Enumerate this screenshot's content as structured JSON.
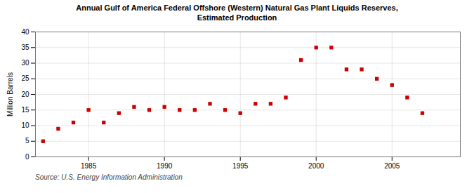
{
  "chart_data": {
    "type": "scatter",
    "title": "Annual Gulf of America Federal Offshore (Western) Natural Gas Plant Liquids Reserves,\nEstimated Production",
    "ylabel": "Million Barrels",
    "source": "Source: U.S. Energy Information Administration",
    "x": [
      1982,
      1983,
      1984,
      1985,
      1986,
      1987,
      1988,
      1989,
      1990,
      1991,
      1992,
      1993,
      1994,
      1995,
      1996,
      1997,
      1998,
      1999,
      2000,
      2001,
      2002,
      2003,
      2004,
      2005,
      2006,
      2007
    ],
    "values": [
      5,
      9,
      11,
      15,
      11,
      14,
      16,
      15,
      16,
      15,
      15,
      17,
      15,
      14,
      17,
      17,
      19,
      31,
      35,
      35,
      28,
      28,
      25,
      23,
      19,
      14
    ],
    "color": "#cc0000",
    "marker": "square",
    "xlim": [
      1981.5,
      2009.5
    ],
    "xticks": [
      1985,
      1990,
      1995,
      2000,
      2005
    ],
    "ylim": [
      0,
      40
    ],
    "yticks": [
      0,
      5,
      10,
      15,
      20,
      25,
      30,
      35,
      40
    ],
    "grid": true
  }
}
